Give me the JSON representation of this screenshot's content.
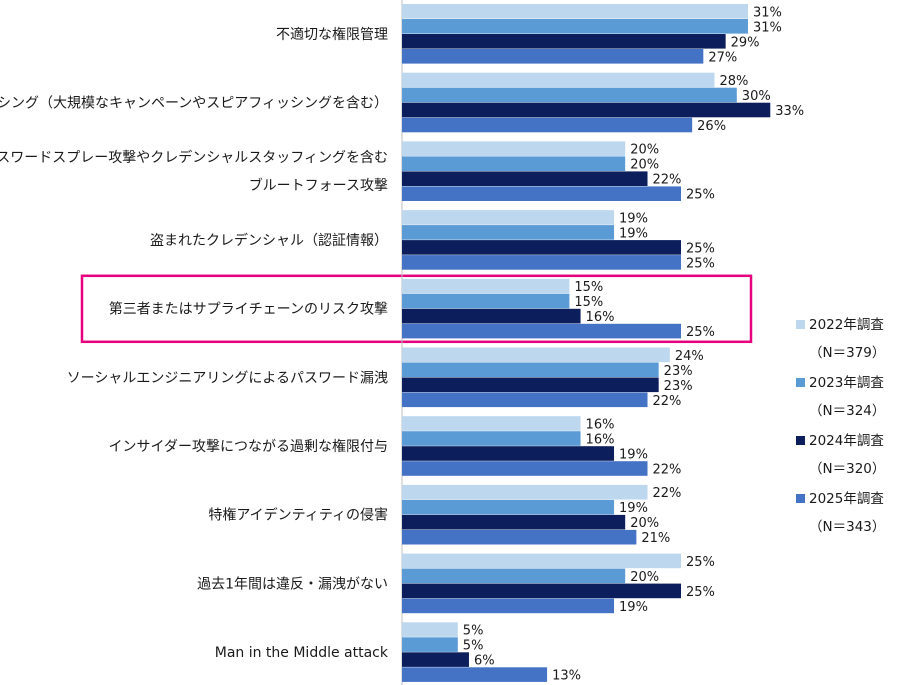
{
  "chart_data": {
    "type": "bar",
    "orientation": "horizontal",
    "categories": [
      "不適切な権限管理",
      "フィッシング（大規模なキャンペーンやスピアフィッシングを含む）",
      "パスワードスプレー攻撃やクレデンシャルスタッフィングを含む\nブルートフォース攻撃",
      "盗まれたクレデンシャル（認証情報）",
      "第三者またはサプライチェーンのリスク攻撃",
      "ソーシャルエンジニアリングによるパスワード漏洩",
      "インサイダー攻撃につながる過剰な権限付与",
      "特権アイデンティティの侵害",
      "過去1年間は違反・漏洩がない",
      "Man in the Middle attack"
    ],
    "series": [
      {
        "name": "2022年調査",
        "sample": "（N＝379）",
        "color": "#bdd7ee",
        "values": [
          31,
          28,
          20,
          19,
          15,
          24,
          16,
          22,
          25,
          5
        ]
      },
      {
        "name": "2023年調査",
        "sample": "（N＝324）",
        "color": "#5b9bd5",
        "values": [
          31,
          30,
          20,
          19,
          15,
          23,
          16,
          19,
          20,
          5
        ]
      },
      {
        "name": "2024年調査",
        "sample": "（N＝320）",
        "color": "#0c1f5c",
        "values": [
          29,
          33,
          22,
          25,
          16,
          23,
          19,
          20,
          25,
          6
        ]
      },
      {
        "name": "2025年調査",
        "sample": "（N＝343）",
        "color": "#4472c4",
        "values": [
          27,
          26,
          25,
          25,
          25,
          22,
          22,
          21,
          19,
          13
        ]
      }
    ],
    "value_suffix": "%",
    "xlim": [
      0,
      40
    ],
    "highlighted_category_index": 4,
    "highlight_color": "#e6007e",
    "legend_position": "right",
    "grid": false
  }
}
